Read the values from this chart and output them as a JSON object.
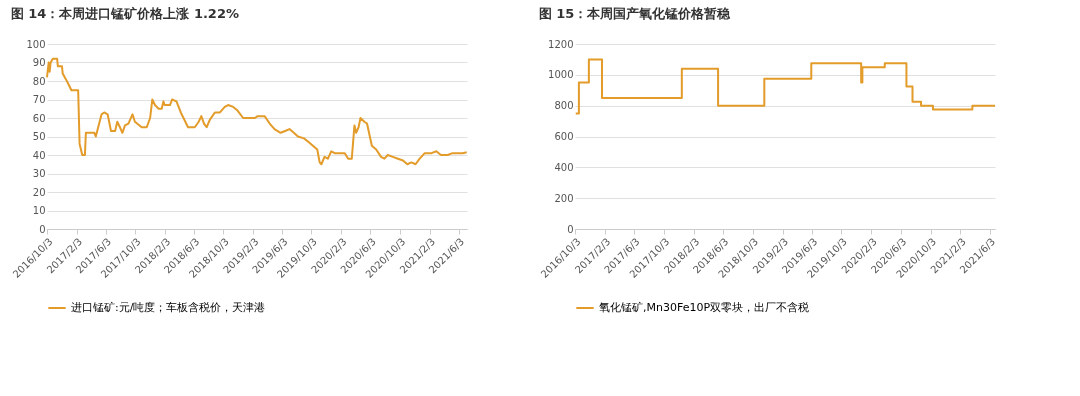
{
  "chart_data": [
    {
      "type": "line",
      "title": "图 14：本周进口锰矿价格上涨 1.22%",
      "legend": "bottom",
      "grid": "y",
      "xlim": [
        "2016-10-03",
        "2021-07-08"
      ],
      "ylim": [
        0,
        100
      ],
      "yticks": [
        0,
        10,
        20,
        30,
        40,
        50,
        60,
        70,
        80,
        90,
        100
      ],
      "xticks": [
        {
          "value": "2016-10-03",
          "label": "2016/10/3"
        },
        {
          "value": "2017-02-03",
          "label": "2017/2/3"
        },
        {
          "value": "2017-06-03",
          "label": "2017/6/3"
        },
        {
          "value": "2017-10-03",
          "label": "2017/10/3"
        },
        {
          "value": "2018-02-03",
          "label": "2018/2/3"
        },
        {
          "value": "2018-06-03",
          "label": "2018/6/3"
        },
        {
          "value": "2018-10-03",
          "label": "2018/10/3"
        },
        {
          "value": "2019-02-03",
          "label": "2019/2/3"
        },
        {
          "value": "2019-06-03",
          "label": "2019/6/3"
        },
        {
          "value": "2019-10-03",
          "label": "2019/10/3"
        },
        {
          "value": "2020-02-03",
          "label": "2020/2/3"
        },
        {
          "value": "2020-06-03",
          "label": "2020/6/3"
        },
        {
          "value": "2020-10-03",
          "label": "2020/10/3"
        },
        {
          "value": "2021-02-03",
          "label": "2021/2/3"
        },
        {
          "value": "2021-06-03",
          "label": "2021/6/3"
        }
      ],
      "x": [
        "2016-10-03",
        "2016-10-10",
        "2016-10-14",
        "2016-10-18",
        "2016-10-27",
        "2016-11-14",
        "2016-11-17",
        "2016-12-04",
        "2016-12-07",
        "2016-12-20",
        "2017-01-01",
        "2017-01-12",
        "2017-02-09",
        "2017-02-15",
        "2017-02-26",
        "2017-03-09",
        "2017-03-13",
        "2017-04-17",
        "2017-04-23",
        "2017-05-03",
        "2017-05-17",
        "2017-05-28",
        "2017-06-11",
        "2017-06-25",
        "2017-07-12",
        "2017-07-21",
        "2017-08-01",
        "2017-08-11",
        "2017-08-22",
        "2017-09-05",
        "2017-09-22",
        "2017-10-02",
        "2017-10-30",
        "2017-11-20",
        "2017-12-04",
        "2017-12-13",
        "2017-12-24",
        "2018-01-08",
        "2018-01-21",
        "2018-01-28",
        "2018-02-02",
        "2018-02-24",
        "2018-03-05",
        "2018-03-23",
        "2018-04-10",
        "2018-05-10",
        "2018-06-07",
        "2018-06-23",
        "2018-07-04",
        "2018-07-15",
        "2018-07-26",
        "2018-08-08",
        "2018-08-29",
        "2018-09-19",
        "2018-10-09",
        "2018-10-23",
        "2018-11-13",
        "2018-12-01",
        "2018-12-24",
        "2019-02-11",
        "2019-02-22",
        "2019-03-23",
        "2019-04-13",
        "2019-05-03",
        "2019-05-28",
        "2019-06-16",
        "2019-07-04",
        "2019-07-22",
        "2019-08-08",
        "2019-09-02",
        "2019-09-21",
        "2019-10-09",
        "2019-10-27",
        "2019-11-06",
        "2019-11-13",
        "2019-11-26",
        "2019-12-10",
        "2019-12-24",
        "2020-01-07",
        "2020-02-18",
        "2020-03-03",
        "2020-03-18",
        "2020-03-29",
        "2020-04-05",
        "2020-04-15",
        "2020-04-23",
        "2020-05-09",
        "2020-05-20",
        "2020-06-09",
        "2020-06-27",
        "2020-07-17",
        "2020-07-31",
        "2020-08-14",
        "2020-09-04",
        "2020-09-25",
        "2020-10-16",
        "2020-11-03",
        "2020-11-20",
        "2020-12-07",
        "2020-12-24",
        "2021-01-14",
        "2021-02-11",
        "2021-03-03",
        "2021-03-22",
        "2021-04-19",
        "2021-05-09",
        "2021-06-20",
        "2021-07-07"
      ],
      "series": [
        {
          "name": "进口锰矿:元/吨度；车板含税价，天津港",
          "color": "#e39b2a",
          "values": [
            82,
            90,
            85,
            90,
            92,
            92,
            88,
            88,
            84,
            81,
            78,
            75,
            75,
            46,
            40,
            40,
            52,
            52,
            50,
            55,
            62,
            63,
            62,
            53,
            53,
            58,
            55,
            52,
            56,
            57,
            62,
            58,
            55,
            55,
            60,
            70,
            67,
            65,
            65,
            69,
            67,
            67,
            70,
            69,
            63,
            55,
            55,
            58,
            61,
            57,
            55,
            59,
            63,
            63,
            66,
            67,
            66,
            64,
            60,
            60,
            61,
            61,
            57,
            54,
            52,
            53,
            54,
            52,
            50,
            49,
            47,
            45,
            43,
            36,
            35,
            39,
            38,
            42,
            41,
            41,
            38,
            38,
            56,
            52,
            55,
            60,
            58,
            57,
            45,
            43,
            39,
            38,
            40,
            39,
            38,
            37,
            35,
            36,
            35,
            38,
            41,
            41,
            42,
            40,
            40,
            41,
            41,
            41.5
          ]
        }
      ]
    },
    {
      "type": "step",
      "title": "图 15：本周国产氧化锰价格暂稳",
      "legend": "bottom",
      "grid": "y",
      "xlim": [
        "2016-10-03",
        "2021-06-25"
      ],
      "ylim": [
        0,
        1200
      ],
      "yticks": [
        0,
        200,
        400,
        600,
        800,
        1000,
        1200
      ],
      "xticks": [
        {
          "value": "2016-10-03",
          "label": "2016/10/3"
        },
        {
          "value": "2017-02-03",
          "label": "2017/2/3"
        },
        {
          "value": "2017-06-03",
          "label": "2017/6/3"
        },
        {
          "value": "2017-10-03",
          "label": "2017/10/3"
        },
        {
          "value": "2018-02-03",
          "label": "2018/2/3"
        },
        {
          "value": "2018-06-03",
          "label": "2018/6/3"
        },
        {
          "value": "2018-10-03",
          "label": "2018/10/3"
        },
        {
          "value": "2019-02-03",
          "label": "2019/2/3"
        },
        {
          "value": "2019-06-03",
          "label": "2019/6/3"
        },
        {
          "value": "2019-10-03",
          "label": "2019/10/3"
        },
        {
          "value": "2020-02-03",
          "label": "2020/2/3"
        },
        {
          "value": "2020-06-03",
          "label": "2020/6/3"
        },
        {
          "value": "2020-10-03",
          "label": "2020/10/3"
        },
        {
          "value": "2021-02-03",
          "label": "2021/2/3"
        },
        {
          "value": "2021-06-03",
          "label": "2021/6/3"
        }
      ],
      "x": [
        "2016-10-06",
        "2016-10-19",
        "2016-11-29",
        "2017-01-22",
        "2017-12-16",
        "2018-05-14",
        "2018-11-20",
        "2019-06-01",
        "2019-12-23",
        "2019-12-28",
        "2020-03-29",
        "2020-06-26",
        "2020-07-21",
        "2020-08-25",
        "2020-10-13",
        "2021-03-24",
        "2021-06-25"
      ],
      "series": [
        {
          "name": "氧化锰矿,Mn30Fe10P双零块，出厂不含税",
          "color": "#e39b2a",
          "values": [
            750,
            950,
            1100,
            850,
            1040,
            800,
            975,
            1075,
            950,
            1050,
            1075,
            925,
            825,
            800,
            775,
            800,
            800
          ]
        }
      ]
    }
  ]
}
